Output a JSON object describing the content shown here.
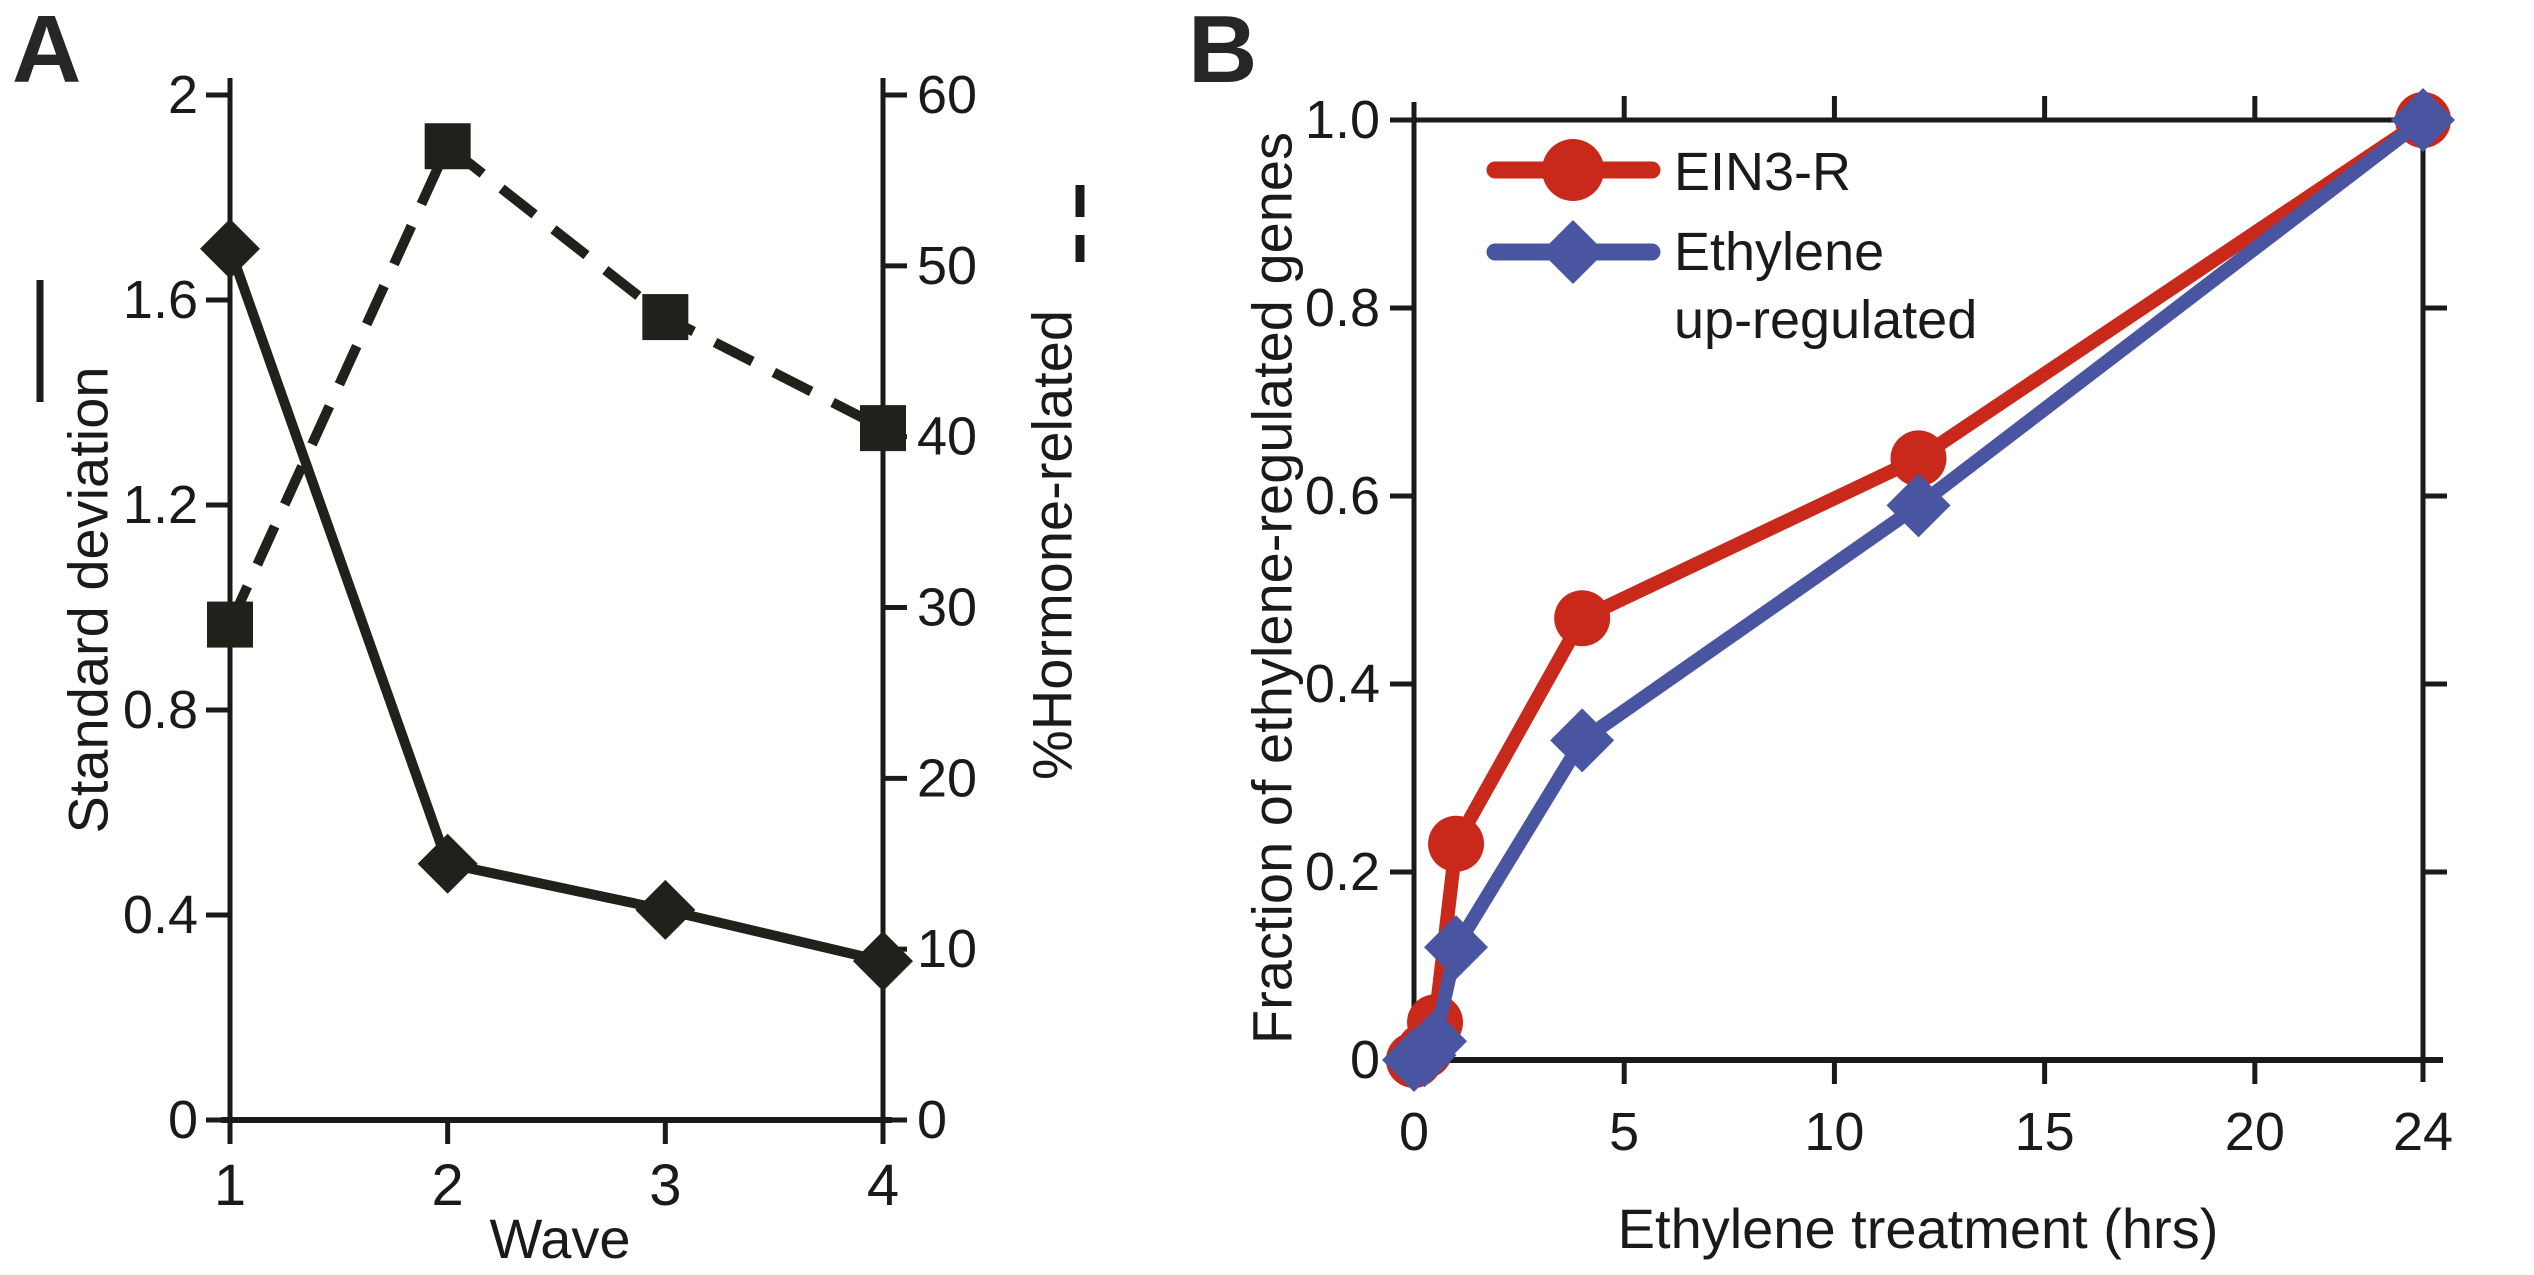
{
  "figure_background": "#ffffff",
  "chart_data": [
    {
      "panel_label": "A",
      "type": "line",
      "x_axis": {
        "title": "Wave",
        "tick_labels": [
          "1",
          "2",
          "3",
          "4"
        ],
        "tick_label_colors": [
          "#c23b27",
          "#f2d71e",
          "#4a5aa8",
          "#62a744"
        ]
      },
      "left_axis": {
        "title": "Standard deviation",
        "range": [
          0,
          2
        ],
        "ticks": [
          2,
          1.6,
          1.2,
          0.8,
          0.4,
          0
        ],
        "tick_labels": [
          "2",
          "1.6",
          "1.2",
          "0.8",
          "0.4",
          "0"
        ]
      },
      "right_axis": {
        "title": "%Hormone-related",
        "range": [
          0,
          60
        ],
        "ticks": [
          60,
          50,
          40,
          30,
          20,
          10,
          0
        ],
        "tick_labels": [
          "60",
          "50",
          "40",
          "30",
          "20",
          "10",
          "0"
        ]
      },
      "series": [
        {
          "name": "Standard deviation",
          "axis": "left",
          "line_style": "solid",
          "marker": "diamond",
          "color": "#21201a",
          "categories": [
            1,
            2,
            3,
            4
          ],
          "values": [
            1.7,
            0.5,
            0.41,
            0.31
          ]
        },
        {
          "name": "%Hormone-related",
          "axis": "right",
          "line_style": "dashed",
          "marker": "square",
          "color": "#21201a",
          "categories": [
            1,
            2,
            3,
            4
          ],
          "values": [
            29,
            57,
            47,
            40.5
          ]
        }
      ],
      "legend": {
        "solid_symbol_for": "Standard deviation",
        "dashed_symbol_for": "%Hormone-related",
        "position": "beside-axis-titles"
      },
      "grid": false
    },
    {
      "panel_label": "B",
      "type": "line",
      "x_axis": {
        "title": "Ethylene treatment (hrs)",
        "range": [
          0,
          24
        ],
        "ticks": [
          0,
          5,
          10,
          15,
          20,
          24
        ],
        "tick_labels": [
          "0",
          "5",
          "10",
          "15",
          "20",
          "24"
        ]
      },
      "y_axis": {
        "title": "Fraction of ethylene-regulated genes",
        "range": [
          0,
          1.0
        ],
        "ticks": [
          1.0,
          0.8,
          0.6,
          0.4,
          0.2,
          0
        ],
        "tick_labels": [
          "1.0",
          "0.8",
          "0.6",
          "0.4",
          "0.2",
          "0"
        ]
      },
      "series": [
        {
          "name": "EIN3-R",
          "color": "#c8291b",
          "marker": "circle",
          "x": [
            0,
            0.25,
            0.5,
            1,
            4,
            12,
            24
          ],
          "values": [
            0,
            0.01,
            0.04,
            0.23,
            0.47,
            0.64,
            1.0
          ]
        },
        {
          "name": "Ethylene up-regulated",
          "color": "#4a55a2",
          "marker": "diamond",
          "x": [
            0,
            0.25,
            0.5,
            1,
            4,
            12,
            24
          ],
          "values": [
            0,
            0.005,
            0.02,
            0.12,
            0.34,
            0.59,
            1.0
          ]
        }
      ],
      "legend": [
        {
          "label": "EIN3-R"
        },
        {
          "label_line1": "Ethylene",
          "label_line2": "up-regulated"
        }
      ],
      "legend_position": "top-left-inside",
      "grid": false
    }
  ]
}
